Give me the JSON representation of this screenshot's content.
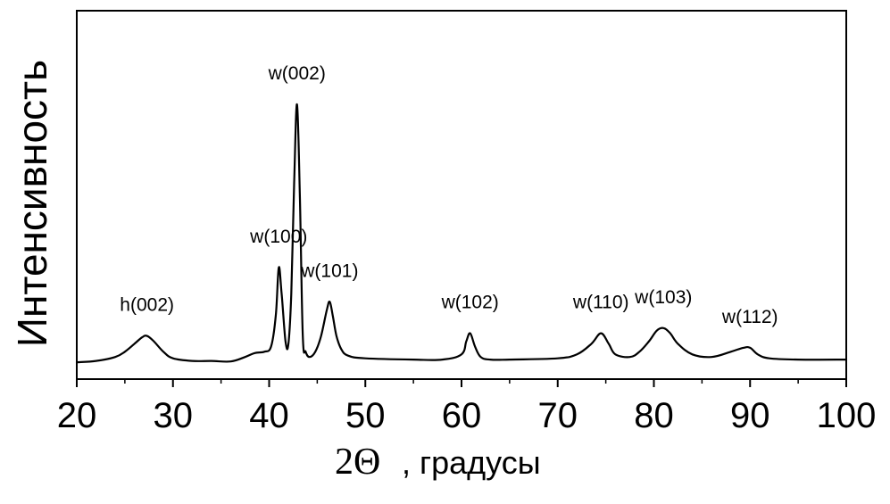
{
  "chart_data": {
    "type": "line",
    "xlabel_symbol": "2Θ",
    "xlabel_text": ", градусы",
    "ylabel": "Интенсивность",
    "xlim": [
      20,
      100
    ],
    "ylim": [
      0,
      100
    ],
    "xticks": [
      20,
      30,
      40,
      50,
      60,
      70,
      80,
      90,
      100
    ],
    "yticks_shown": false,
    "grid": false,
    "legend": "none",
    "series": [
      {
        "color": "#000000",
        "x": [
          20,
          22,
          24,
          25,
          26,
          26.8,
          27.3,
          28,
          29,
          30,
          32,
          34,
          36,
          37.5,
          38.5,
          39.5,
          40.2,
          40.7,
          41.0,
          41.3,
          41.7,
          42.0,
          42.3,
          42.6,
          42.9,
          43.2,
          43.5,
          43.8,
          44.2,
          44.8,
          45.4,
          46.0,
          46.3,
          46.6,
          47.0,
          47.5,
          48.2,
          50,
          55,
          58,
          60,
          60.5,
          60.9,
          61.4,
          62,
          63,
          65,
          70,
          72,
          73.5,
          74.5,
          75.3,
          76,
          77.5,
          78.5,
          79.5,
          80.3,
          81,
          81.7,
          82.5,
          84,
          86,
          88,
          89.3,
          90,
          90.8,
          92,
          95,
          100
        ],
        "y": [
          2,
          2.5,
          4,
          6,
          9,
          11.5,
          12,
          10,
          6,
          3.5,
          2.5,
          2.5,
          2.3,
          4,
          5.5,
          6,
          8,
          20,
          38,
          28,
          10,
          9,
          28,
          70,
          100,
          64,
          12,
          6,
          4,
          6,
          12,
          22,
          25,
          20,
          12,
          7,
          4.5,
          3.5,
          3,
          3,
          5,
          10,
          13,
          8,
          4,
          3,
          3,
          3.5,
          5,
          9,
          13,
          9,
          5,
          4,
          6,
          10,
          14,
          15,
          13,
          9,
          5,
          4,
          6,
          7.5,
          7.5,
          5,
          3.5,
          3,
          3
        ]
      }
    ],
    "annotations": [
      {
        "text": "h(002)",
        "x": 27.3,
        "y": 12
      },
      {
        "text": "w(100)",
        "x": 41.0,
        "y": 38
      },
      {
        "text": "w(002)",
        "x": 42.9,
        "y": 100
      },
      {
        "text": "w(101)",
        "x": 46.3,
        "y": 25
      },
      {
        "text": "w(102)",
        "x": 60.9,
        "y": 13
      },
      {
        "text": "w(110)",
        "x": 74.5,
        "y": 13
      },
      {
        "text": "w(103)",
        "x": 81.0,
        "y": 15
      },
      {
        "text": "w(112)",
        "x": 90.0,
        "y": 7.5
      }
    ]
  }
}
